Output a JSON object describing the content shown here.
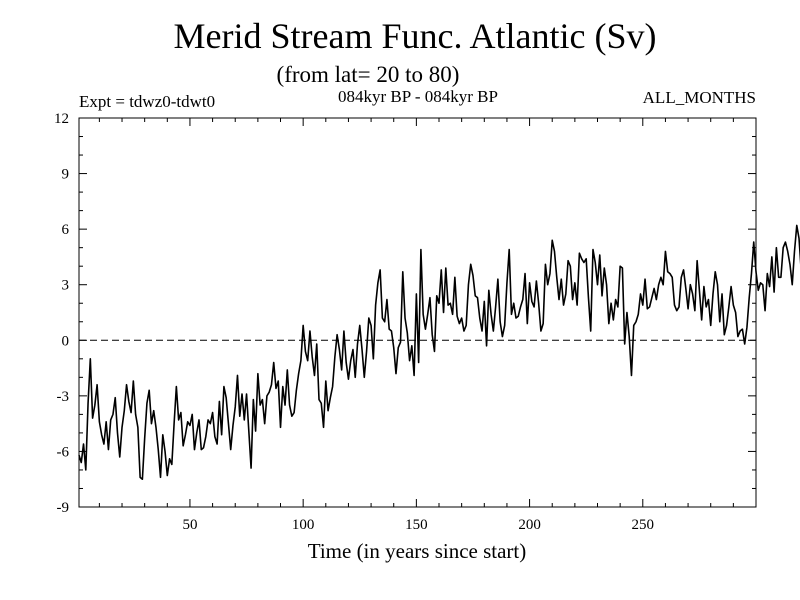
{
  "chart_data": {
    "type": "line",
    "title": "Merid Stream Func. Atlantic (Sv)",
    "subtitle": "(from lat= 20 to 80)",
    "expt_label": "Expt = tdwz0-tdwt0",
    "period_label": "084kyr BP - 084kyr BP",
    "months_label": "ALL_MONTHS",
    "xlabel": "Time (in years since start)",
    "ylabel": "",
    "xlim": [
      1,
      300
    ],
    "ylim": [
      -9,
      12
    ],
    "x_ticks": [
      50,
      100,
      150,
      200,
      250
    ],
    "x_tick_labels": [
      "50",
      "100",
      "150",
      "200",
      "250"
    ],
    "y_ticks": [
      -9,
      -6,
      -3,
      0,
      3,
      6,
      9,
      12
    ],
    "y_tick_labels": [
      "-9",
      "-6",
      "-3",
      "0",
      "3",
      "6",
      "9",
      "12"
    ],
    "reference_line": 0,
    "grid": false,
    "series": [
      {
        "name": "Merid Stream Func. Atlantic",
        "color": "#000000",
        "x_start": 1,
        "x_step": 1,
        "values": [
          -6.2,
          -6.6,
          -5.6,
          -7.0,
          -3.4,
          -1.0,
          -4.2,
          -3.5,
          -2.4,
          -4.4,
          -5.1,
          -5.6,
          -4.4,
          -5.9,
          -4.3,
          -4.0,
          -3.1,
          -5.0,
          -6.3,
          -4.7,
          -3.8,
          -2.4,
          -3.3,
          -3.9,
          -2.2,
          -4.0,
          -4.7,
          -7.4,
          -7.5,
          -5.3,
          -3.4,
          -2.7,
          -4.5,
          -3.8,
          -4.7,
          -5.9,
          -7.4,
          -5.1,
          -6.0,
          -7.3,
          -6.4,
          -6.7,
          -4.5,
          -2.5,
          -4.3,
          -3.9,
          -5.7,
          -5.1,
          -4.4,
          -4.6,
          -4.0,
          -5.9,
          -5.0,
          -4.3,
          -5.9,
          -5.8,
          -5.2,
          -4.3,
          -4.5,
          -3.9,
          -5.2,
          -5.6,
          -3.3,
          -5.1,
          -2.5,
          -3.1,
          -4.5,
          -5.9,
          -4.6,
          -3.6,
          -1.9,
          -4.1,
          -2.9,
          -4.3,
          -2.9,
          -4.9,
          -6.9,
          -3.2,
          -4.9,
          -1.8,
          -3.5,
          -3.2,
          -4.5,
          -3.0,
          -2.8,
          -2.4,
          -1.2,
          -2.6,
          -2.2,
          -4.7,
          -2.5,
          -3.5,
          -1.6,
          -3.5,
          -4.1,
          -3.9,
          -2.7,
          -1.8,
          -1.1,
          0.8,
          -0.6,
          -1.1,
          0.5,
          -0.9,
          -1.9,
          -0.2,
          -3.2,
          -3.4,
          -4.7,
          -2.2,
          -3.8,
          -3.1,
          -2.5,
          -0.9,
          0.3,
          -0.5,
          -1.6,
          0.5,
          -1.2,
          -2.1,
          -1.1,
          -0.5,
          -2.0,
          -0.2,
          0.8,
          -0.5,
          -2.0,
          -0.6,
          1.2,
          0.8,
          -1.0,
          1.9,
          3.1,
          3.8,
          1.2,
          1.0,
          2.2,
          0.6,
          0.5,
          -0.4,
          -1.8,
          -0.4,
          -0.1,
          3.7,
          1.2,
          0.4,
          -1.1,
          -0.3,
          -1.9,
          2.5,
          -1.2,
          4.9,
          1.4,
          0.6,
          1.4,
          2.3,
          0.3,
          -0.6,
          2.4,
          2.0,
          3.8,
          1.5,
          3.9,
          1.9,
          2.0,
          1.4,
          3.4,
          1.3,
          0.9,
          1.2,
          0.5,
          0.8,
          3.0,
          4.1,
          3.5,
          2.4,
          2.3,
          1.2,
          0.5,
          2.1,
          -0.3,
          2.7,
          1.4,
          0.5,
          1.8,
          3.3,
          1.0,
          0.2,
          0.8,
          3.1,
          4.9,
          1.4,
          2.0,
          1.2,
          1.3,
          1.8,
          2.2,
          3.6,
          0.9,
          3.1,
          2.1,
          1.8,
          3.2,
          2.0,
          0.5,
          0.9,
          4.1,
          3.0,
          3.6,
          5.4,
          4.8,
          3.4,
          2.2,
          3.3,
          1.9,
          2.5,
          4.3,
          4.0,
          2.2,
          3.1,
          1.9,
          4.7,
          4.4,
          4.2,
          4.4,
          2.3,
          0.5,
          4.9,
          4.2,
          3.0,
          4.6,
          2.4,
          3.9,
          3.0,
          0.9,
          2.0,
          1.1,
          2.2,
          1.8,
          4.0,
          3.9,
          -0.2,
          1.5,
          0.2,
          -1.9,
          0.8,
          1.0,
          1.4,
          2.5,
          1.9,
          3.3,
          1.7,
          1.8,
          2.3,
          2.8,
          2.2,
          3.0,
          3.4,
          3.0,
          4.8,
          3.7,
          3.6,
          3.4,
          1.9,
          1.6,
          1.8,
          3.4,
          3.8,
          2.8,
          1.7,
          3.0,
          2.5,
          1.6,
          4.3,
          2.7,
          1.1,
          2.9,
          1.8,
          2.2,
          0.8,
          2.5,
          3.7,
          3.0,
          1.0,
          2.5,
          0.3,
          0.8,
          1.8,
          2.9,
          1.9,
          1.5,
          0.2,
          0.5,
          0.6,
          -0.2,
          0.7,
          2.3,
          3.6,
          5.3,
          3.7,
          2.7,
          3.1,
          3.0,
          1.6,
          3.6,
          2.9,
          4.5,
          2.6,
          5.0,
          3.4,
          3.4,
          5.0,
          5.3,
          4.8,
          4.1,
          3.0,
          4.8,
          6.2,
          5.5,
          3.7,
          4.0,
          3.2,
          4.3,
          2.5
        ]
      }
    ]
  }
}
